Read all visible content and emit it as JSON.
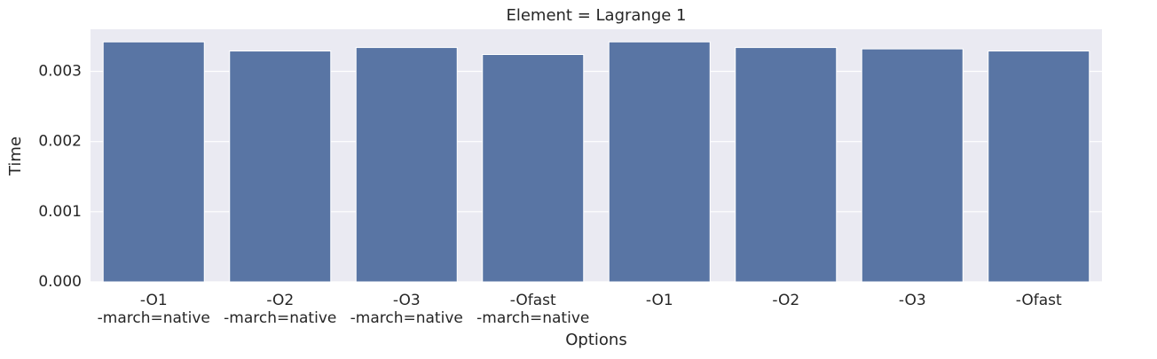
{
  "chart_data": {
    "type": "bar",
    "title": "Element = Lagrange 1",
    "x_label": "Options",
    "y_label": "Time",
    "categories": [
      "-O1\n-march=native",
      "-O2\n-march=native",
      "-O3\n-march=native",
      "-Ofast\n-march=native",
      "-O1",
      "-O2",
      "-O3",
      "-Ofast"
    ],
    "values": [
      0.00342,
      0.00329,
      0.00334,
      0.00324,
      0.00342,
      0.00334,
      0.00332,
      0.00329
    ],
    "color": "#5975a4",
    "ylim": [
      0,
      0.0036
    ],
    "yticks": [
      {
        "value": 0,
        "label": "0.000"
      },
      0.001,
      0.002,
      0.003
    ],
    "grid": true
  }
}
